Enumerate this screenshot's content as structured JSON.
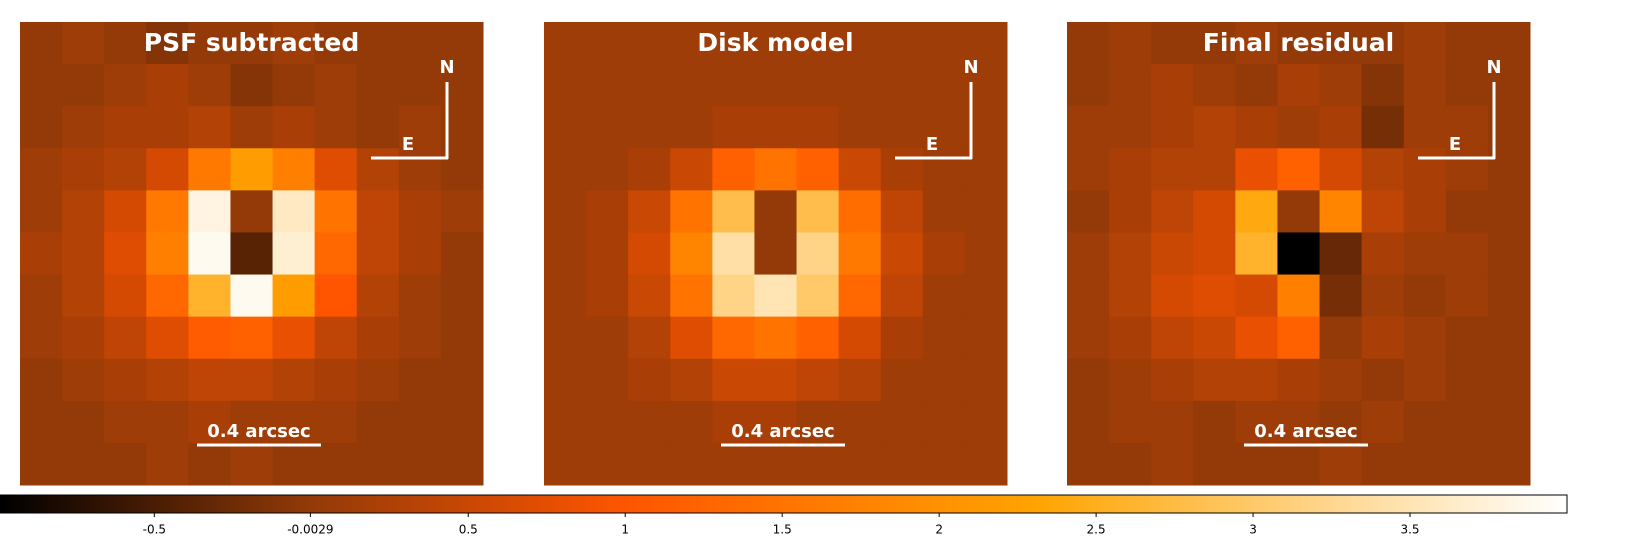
{
  "chart_data": {
    "type": "image",
    "colormap": {
      "values": [
        -0.99,
        0,
        1,
        2.3,
        4
      ],
      "colors": [
        "#000000",
        "#933a08",
        "#ff5500",
        "#ffa300",
        "#ffffff"
      ]
    },
    "clim": [
      -0.99,
      4.0
    ],
    "cticks": [
      -0.5,
      -0.0029,
      0.5,
      1,
      1.5,
      2,
      2.5,
      3,
      3.5
    ],
    "panels": [
      {
        "title": "PSF subtracted",
        "north": "N",
        "east": "E",
        "scale_label": "0.4 arcsec",
        "z": [
          [
            0,
            0.1,
            0,
            -0.1,
            0,
            0,
            0.1,
            0,
            0,
            0,
            0
          ],
          [
            0,
            0,
            0.1,
            0.2,
            0.1,
            -0.1,
            0,
            0.1,
            0,
            0,
            0
          ],
          [
            0,
            0.1,
            0.2,
            0.2,
            0.3,
            0.1,
            0.2,
            0.1,
            0,
            0.1,
            0
          ],
          [
            0.1,
            0.2,
            0.3,
            0.6,
            1.6,
            2.2,
            1.7,
            0.7,
            0.3,
            0.1,
            0
          ],
          [
            0.1,
            0.3,
            0.6,
            1.6,
            3.8,
            0,
            3.6,
            1.5,
            0.4,
            0.2,
            0.1
          ],
          [
            0.2,
            0.3,
            0.7,
            1.7,
            3.9,
            -0.4,
            3.7,
            1.3,
            0.4,
            0.2,
            0
          ],
          [
            0.1,
            0.3,
            0.6,
            1.3,
            2.6,
            3.9,
            2.2,
            1.0,
            0.3,
            0.1,
            0
          ],
          [
            0.1,
            0.2,
            0.4,
            0.7,
            1.1,
            1.2,
            0.8,
            0.4,
            0.2,
            0.1,
            0
          ],
          [
            0,
            0.1,
            0.2,
            0.3,
            0.4,
            0.4,
            0.3,
            0.2,
            0.1,
            0,
            0
          ],
          [
            0,
            0,
            0.1,
            0.1,
            0.2,
            0.1,
            0.1,
            0.1,
            0,
            0,
            0
          ],
          [
            0,
            0,
            0,
            0.1,
            0,
            0.1,
            0,
            0,
            0,
            0,
            0
          ]
        ]
      },
      {
        "title": "Disk model",
        "north": "N",
        "east": "E",
        "scale_label": "0.4 arcsec",
        "z": [
          [
            0.1,
            0.1,
            0.1,
            0.1,
            0.1,
            0.1,
            0.1,
            0.1,
            0.1,
            0.1,
            0.1
          ],
          [
            0.1,
            0.1,
            0.1,
            0.1,
            0.1,
            0.1,
            0.1,
            0.1,
            0.1,
            0.1,
            0.1
          ],
          [
            0.1,
            0.1,
            0.1,
            0.1,
            0.2,
            0.2,
            0.2,
            0.1,
            0.1,
            0.1,
            0.1
          ],
          [
            0.1,
            0.1,
            0.2,
            0.5,
            1.2,
            1.5,
            1.2,
            0.5,
            0.2,
            0.1,
            0.1
          ],
          [
            0.1,
            0.2,
            0.5,
            1.5,
            2.8,
            0,
            2.8,
            1.4,
            0.4,
            0.1,
            0.1
          ],
          [
            0.1,
            0.2,
            0.6,
            1.8,
            3.4,
            0,
            3.2,
            1.6,
            0.5,
            0.2,
            0.1
          ],
          [
            0.1,
            0.2,
            0.5,
            1.5,
            3.2,
            3.5,
            3.0,
            1.3,
            0.4,
            0.1,
            0.1
          ],
          [
            0.1,
            0.1,
            0.3,
            0.7,
            1.3,
            1.5,
            1.2,
            0.6,
            0.2,
            0.1,
            0.1
          ],
          [
            0.1,
            0.1,
            0.2,
            0.3,
            0.5,
            0.5,
            0.4,
            0.3,
            0.1,
            0.1,
            0.1
          ],
          [
            0.1,
            0.1,
            0.1,
            0.1,
            0.2,
            0.2,
            0.1,
            0.1,
            0.1,
            0.1,
            0.1
          ],
          [
            0.1,
            0.1,
            0.1,
            0.1,
            0.1,
            0.1,
            0.1,
            0.1,
            0.1,
            0.1,
            0.1
          ]
        ]
      },
      {
        "title": "Final residual",
        "north": "N",
        "east": "E",
        "scale_label": "0.4 arcsec",
        "z": [
          [
            0,
            0.1,
            0,
            0,
            0.1,
            0,
            0,
            0,
            0.1,
            0,
            0
          ],
          [
            0,
            0.1,
            0.2,
            0.1,
            0,
            0.2,
            0.1,
            -0.1,
            0.1,
            0,
            0
          ],
          [
            0.1,
            0.1,
            0.2,
            0.3,
            0.2,
            0.1,
            0.2,
            -0.2,
            0.1,
            0.1,
            0
          ],
          [
            0.1,
            0.2,
            0.3,
            0.3,
            0.8,
            1.2,
            0.6,
            0.3,
            0.2,
            0.1,
            0
          ],
          [
            0,
            0.2,
            0.4,
            0.6,
            2.4,
            0,
            1.8,
            0.4,
            0.2,
            0,
            0
          ],
          [
            0.1,
            0.3,
            0.5,
            0.6,
            2.6,
            -0.99,
            -0.3,
            0.2,
            0.1,
            0.1,
            0
          ],
          [
            0.1,
            0.3,
            0.6,
            0.7,
            0.6,
            1.7,
            -0.2,
            0.1,
            0,
            0.1,
            0
          ],
          [
            0.1,
            0.2,
            0.4,
            0.5,
            0.8,
            1.2,
            0,
            0.2,
            0.1,
            0,
            0
          ],
          [
            0,
            0.1,
            0.2,
            0.3,
            0.3,
            0.2,
            0.1,
            0,
            0.1,
            0,
            0
          ],
          [
            0,
            0.1,
            0.1,
            0,
            0.1,
            0.1,
            0,
            0.1,
            0,
            0,
            0
          ],
          [
            0,
            0,
            0.1,
            0,
            0,
            0,
            0.1,
            0,
            0,
            0,
            0
          ]
        ]
      }
    ]
  }
}
